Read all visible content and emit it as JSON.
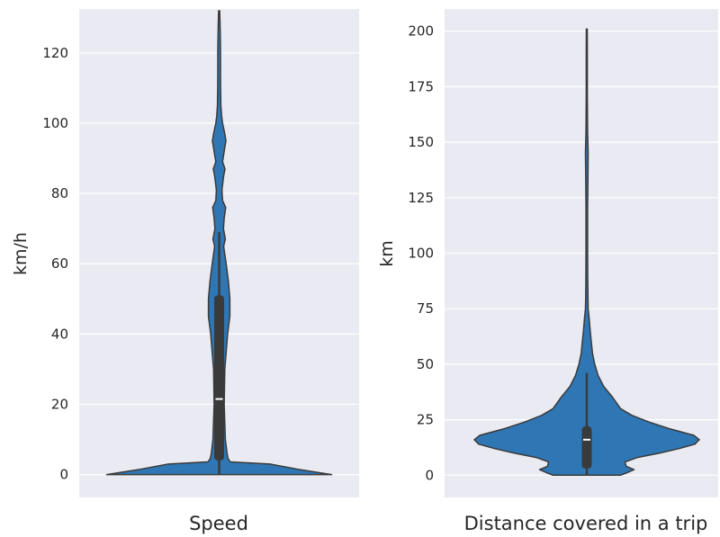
{
  "colors": {
    "violin_fill": "#2f77b4",
    "violin_edge": "#3a3a3a",
    "box": "#3a3a3a",
    "median": "#ffffff",
    "panel_bg": "#eaeaf2",
    "grid": "#ffffff"
  },
  "chart_data": [
    {
      "type": "violin",
      "xlabel": "Speed",
      "ylabel": "km/h",
      "ylim": [
        -6.5,
        132.5
      ],
      "yticks": [
        0,
        20,
        40,
        60,
        80,
        100,
        120
      ],
      "grid": true,
      "box": {
        "whisker_low": 0,
        "q1": 4,
        "median": 21.5,
        "q3": 51,
        "whisker_high": 69
      },
      "density_profile": [
        [
          0,
          1.0
        ],
        [
          1.5,
          0.7
        ],
        [
          3,
          0.45
        ],
        [
          3.6,
          0.1
        ],
        [
          4.5,
          0.08
        ],
        [
          6,
          0.07
        ],
        [
          10,
          0.055
        ],
        [
          20,
          0.045
        ],
        [
          30,
          0.05
        ],
        [
          40,
          0.075
        ],
        [
          45,
          0.095
        ],
        [
          50,
          0.095
        ],
        [
          55,
          0.082
        ],
        [
          60,
          0.062
        ],
        [
          65,
          0.04
        ],
        [
          67,
          0.055
        ],
        [
          70,
          0.038
        ],
        [
          73,
          0.045
        ],
        [
          76,
          0.058
        ],
        [
          78,
          0.03
        ],
        [
          81,
          0.025
        ],
        [
          85,
          0.04
        ],
        [
          87,
          0.052
        ],
        [
          89,
          0.03
        ],
        [
          92,
          0.045
        ],
        [
          95,
          0.06
        ],
        [
          97,
          0.05
        ],
        [
          100,
          0.03
        ],
        [
          102,
          0.022
        ],
        [
          105,
          0.015
        ],
        [
          110,
          0.013
        ],
        [
          115,
          0.012
        ],
        [
          120,
          0.012
        ],
        [
          125,
          0.01
        ],
        [
          128,
          0.008
        ],
        [
          132,
          0.005
        ]
      ]
    },
    {
      "type": "violin",
      "xlabel": "Distance covered in a trip",
      "ylabel": "km",
      "ylim": [
        -10,
        210
      ],
      "yticks": [
        0,
        25,
        50,
        75,
        100,
        125,
        150,
        175,
        200
      ],
      "grid": true,
      "box": {
        "whisker_low": 0,
        "q1": 3,
        "median": 16,
        "q3": 22,
        "whisker_high": 46
      },
      "density_profile": [
        [
          0,
          0.3
        ],
        [
          1,
          0.35
        ],
        [
          2.5,
          0.42
        ],
        [
          4,
          0.35
        ],
        [
          6,
          0.34
        ],
        [
          8,
          0.45
        ],
        [
          10,
          0.65
        ],
        [
          12,
          0.82
        ],
        [
          14,
          0.96
        ],
        [
          16,
          1.0
        ],
        [
          18,
          0.95
        ],
        [
          21,
          0.73
        ],
        [
          24,
          0.55
        ],
        [
          27,
          0.4
        ],
        [
          30,
          0.3
        ],
        [
          35,
          0.23
        ],
        [
          40,
          0.15
        ],
        [
          45,
          0.1
        ],
        [
          50,
          0.07
        ],
        [
          55,
          0.05
        ],
        [
          60,
          0.04
        ],
        [
          65,
          0.03
        ],
        [
          70,
          0.022
        ],
        [
          75,
          0.012
        ],
        [
          80,
          0.01
        ],
        [
          90,
          0.008
        ],
        [
          100,
          0.007
        ],
        [
          120,
          0.007
        ],
        [
          135,
          0.01
        ],
        [
          145,
          0.012
        ],
        [
          155,
          0.007
        ],
        [
          170,
          0.005
        ],
        [
          190,
          0.005
        ],
        [
          201,
          0.004
        ]
      ]
    }
  ]
}
